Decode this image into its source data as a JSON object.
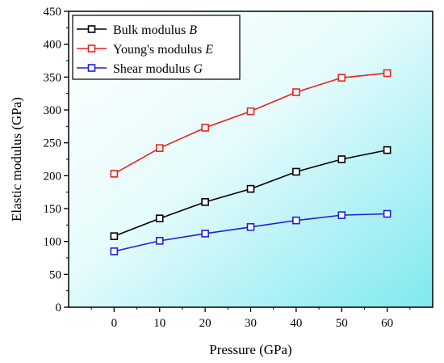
{
  "chart_data": {
    "type": "line",
    "xlabel": "Pressure (GPa)",
    "ylabel": "Elastic modulus (GPa)",
    "x": [
      0,
      10,
      20,
      30,
      40,
      50,
      60
    ],
    "xlim": [
      -10,
      70
    ],
    "ylim": [
      0,
      450
    ],
    "xticks": [
      "0",
      "10",
      "20",
      "30",
      "40",
      "50",
      "60"
    ],
    "yticks": [
      "0",
      "50",
      "100",
      "150",
      "200",
      "250",
      "300",
      "350",
      "400",
      "450"
    ],
    "grid": false,
    "legend_position": "top-left",
    "background": "gradient white to cyan",
    "series": [
      {
        "name": "Bulk modulus",
        "name_var": "B",
        "color": "#000000",
        "values": [
          108,
          135,
          160,
          180,
          206,
          225,
          239
        ]
      },
      {
        "name": "Young's modulus",
        "name_var": "E",
        "color": "#e8231f",
        "values": [
          203,
          242,
          273,
          298,
          327,
          349,
          356
        ]
      },
      {
        "name": "Shear modulus",
        "name_var": "G",
        "color": "#1f1fd6",
        "values": [
          85,
          101,
          112,
          122,
          132,
          140,
          142
        ]
      }
    ]
  }
}
